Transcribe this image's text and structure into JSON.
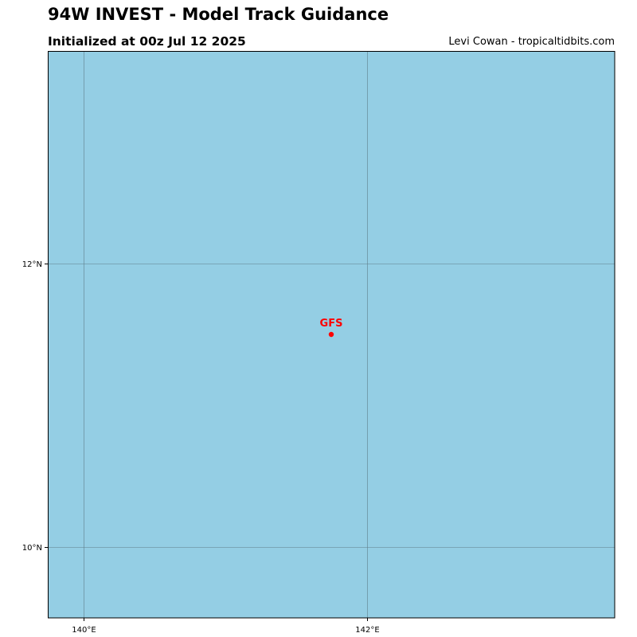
{
  "header": {
    "title": "94W INVEST - Model Track Guidance",
    "subtitle": "Initialized at 00z Jul 12 2025",
    "credit": "Levi Cowan - tropicaltidbits.com"
  },
  "map": {
    "ocean_color": "#94cee4",
    "gridline_color": "#5f7f8a",
    "lon_range": [
      139.75,
      143.75
    ],
    "lat_range": [
      9.5,
      13.5
    ],
    "meridians": [
      {
        "lon": 140,
        "label": "140°E"
      },
      {
        "lon": 142,
        "label": "142°E"
      }
    ],
    "parallels": [
      {
        "lat": 12,
        "label": "12°N"
      },
      {
        "lat": 10,
        "label": "10°N"
      }
    ]
  },
  "tracks": [
    {
      "model": "GFS",
      "color": "#ff0000",
      "points": [
        {
          "lon": 141.75,
          "lat": 11.5
        }
      ]
    }
  ]
}
